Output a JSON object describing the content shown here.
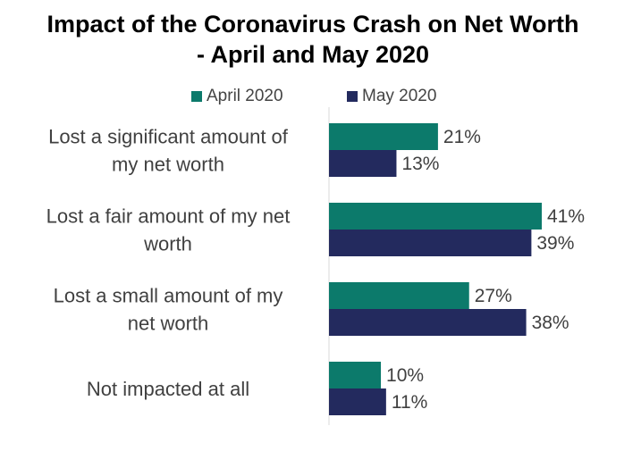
{
  "chart_data": {
    "type": "bar",
    "orientation": "horizontal",
    "title_lines": [
      "Impact of the Coronavirus Crash on Net Worth",
      "- April and May 2020"
    ],
    "categories": [
      [
        "Lost a significant amount of",
        "my net worth"
      ],
      [
        "Lost a fair amount of my net",
        "worth"
      ],
      [
        "Lost a small amount of my",
        "net worth"
      ],
      [
        "Not impacted at all"
      ]
    ],
    "series": [
      {
        "name": "April 2020",
        "color": "#0c7a6b",
        "values": [
          21,
          41,
          27,
          10
        ],
        "labels": [
          "21%",
          "41%",
          "27%",
          "10%"
        ]
      },
      {
        "name": "May 2020",
        "color": "#232a5e",
        "values": [
          13,
          39,
          38,
          11
        ],
        "labels": [
          "13%",
          "39%",
          "38%",
          "11%"
        ]
      }
    ],
    "value_suffix": "%",
    "xlim": [
      0,
      45
    ],
    "legend_position": "top",
    "grid": false
  }
}
